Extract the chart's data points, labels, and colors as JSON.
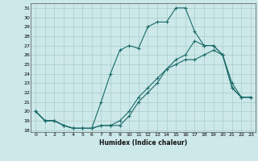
{
  "xlabel": "Humidex (Indice chaleur)",
  "background_color": "#cce8e8",
  "grid_color": "#aacccc",
  "line_color": "#1a6b6b",
  "xlim": [
    -0.5,
    23.5
  ],
  "ylim": [
    17.8,
    31.5
  ],
  "xticks": [
    0,
    1,
    2,
    3,
    4,
    5,
    6,
    7,
    8,
    9,
    10,
    11,
    12,
    13,
    14,
    15,
    16,
    17,
    18,
    19,
    20,
    21,
    22,
    23
  ],
  "yticks": [
    18,
    19,
    20,
    21,
    22,
    23,
    24,
    25,
    26,
    27,
    28,
    29,
    30,
    31
  ],
  "line1_x": [
    0,
    1,
    2,
    3,
    4,
    5,
    6,
    7,
    8,
    9,
    10,
    11,
    12,
    13,
    14,
    15,
    16,
    17,
    18,
    19,
    20,
    21,
    22,
    23
  ],
  "line1_y": [
    20,
    19,
    19,
    18.5,
    18.2,
    18.2,
    18.2,
    18.5,
    18.5,
    18.5,
    19.5,
    21,
    22,
    23,
    24.5,
    25.5,
    26,
    27.5,
    27,
    27,
    26,
    22.5,
    21.5,
    21.5
  ],
  "line2_x": [
    0,
    1,
    2,
    3,
    4,
    5,
    6,
    7,
    8,
    9,
    10,
    11,
    12,
    13,
    14,
    15,
    16,
    17,
    18,
    19,
    20,
    21,
    22,
    23
  ],
  "line2_y": [
    20,
    19,
    19,
    18.5,
    18.2,
    18.2,
    18.2,
    21,
    24,
    26.5,
    27,
    26.7,
    29,
    29.5,
    29.5,
    31,
    31,
    28.5,
    27,
    27,
    26,
    22.5,
    21.5,
    21.5
  ],
  "line3_x": [
    0,
    1,
    2,
    3,
    4,
    5,
    6,
    7,
    8,
    9,
    10,
    11,
    12,
    13,
    14,
    15,
    16,
    17,
    18,
    19,
    20,
    21,
    22,
    23
  ],
  "line3_y": [
    20,
    19,
    19,
    18.5,
    18.2,
    18.2,
    18.2,
    18.5,
    18.5,
    19,
    20,
    21.5,
    22.5,
    23.5,
    24.5,
    25,
    25.5,
    25.5,
    26,
    26.5,
    26,
    23,
    21.5,
    21.5
  ]
}
